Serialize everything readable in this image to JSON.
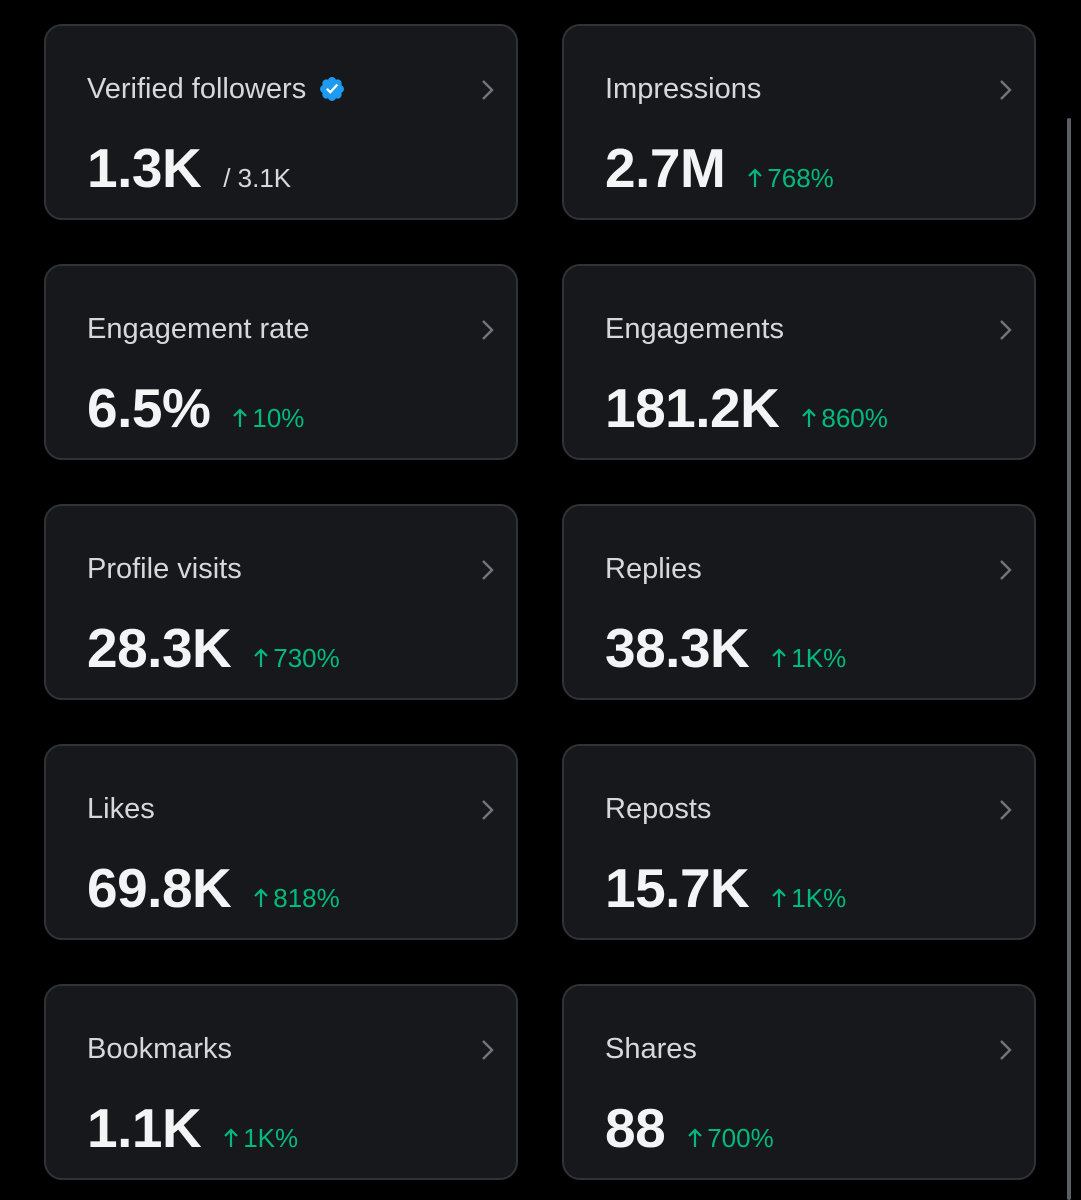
{
  "colors": {
    "background": "#000000",
    "card_background": "#16181c",
    "card_border": "#2f3336",
    "positive_change": "#00ba7c",
    "verified_badge": "#1d9bf0"
  },
  "metrics": {
    "verified_followers": {
      "label": "Verified followers",
      "value": "1.3K",
      "total": "/ 3.1K",
      "icon": "verified-badge-icon"
    },
    "impressions": {
      "label": "Impressions",
      "value": "2.7M",
      "change": "768%"
    },
    "engagement_rate": {
      "label": "Engagement rate",
      "value": "6.5%",
      "change": "10%"
    },
    "engagements": {
      "label": "Engagements",
      "value": "181.2K",
      "change": "860%"
    },
    "profile_visits": {
      "label": "Profile visits",
      "value": "28.3K",
      "change": "730%"
    },
    "replies": {
      "label": "Replies",
      "value": "38.3K",
      "change": "1K%"
    },
    "likes": {
      "label": "Likes",
      "value": "69.8K",
      "change": "818%"
    },
    "reposts": {
      "label": "Reposts",
      "value": "15.7K",
      "change": "1K%"
    },
    "bookmarks": {
      "label": "Bookmarks",
      "value": "1.1K",
      "change": "1K%"
    },
    "shares": {
      "label": "Shares",
      "value": "88",
      "change": "700%"
    }
  }
}
